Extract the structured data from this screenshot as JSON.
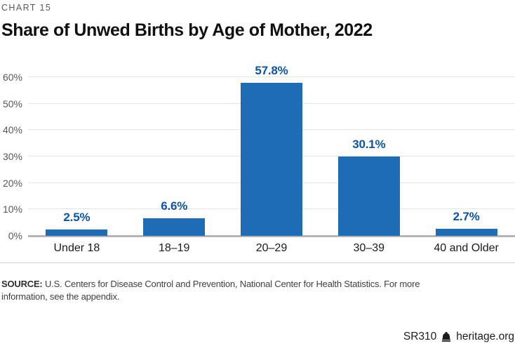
{
  "header": {
    "kicker": "CHART 15",
    "title": "Share of Unwed Births by Age of Mother, 2022"
  },
  "chart_data": {
    "type": "bar",
    "title": "Share of Unwed Births by Age of Mother, 2022",
    "categories": [
      "Under 18",
      "18–19",
      "20–29",
      "30–39",
      "40 and Older"
    ],
    "values": [
      2.5,
      6.6,
      57.8,
      30.1,
      2.7
    ],
    "value_labels": [
      "2.5%",
      "6.6%",
      "57.8%",
      "30.1%",
      "2.7%"
    ],
    "xlabel": "",
    "ylabel": "",
    "ylim": [
      0,
      60
    ],
    "yticks": [
      0,
      10,
      20,
      30,
      40,
      50,
      60
    ],
    "ytick_labels": [
      "0%",
      "10%",
      "20%",
      "30%",
      "40%",
      "50%",
      "60%"
    ],
    "grid": true,
    "legend": "none",
    "bar_color": "#1e6cb5",
    "value_label_color": "#0b54a4"
  },
  "footer": {
    "source_label": "SOURCE:",
    "source_text": " U.S. Centers for Disease Control and Prevention, National Center for Health Statistics. For more information, see the appendix.",
    "report_id": "SR310",
    "site": "heritage.org",
    "logo_icon": "liberty-bell"
  }
}
